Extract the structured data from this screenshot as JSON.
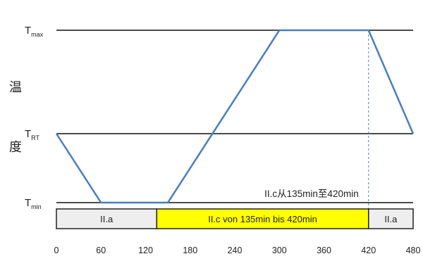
{
  "chart_data": {
    "type": "line",
    "title": "",
    "ylabel_chars": [
      "温",
      "度"
    ],
    "xlabel": "",
    "xlim": [
      0,
      480
    ],
    "x_ticks": [
      0,
      60,
      120,
      180,
      240,
      300,
      360,
      420,
      480
    ],
    "y_levels": [
      {
        "name": "Tmax",
        "base": "T",
        "sub": "max",
        "value": 1.0
      },
      {
        "name": "TRT",
        "base": "T",
        "sub": "RT",
        "value": 0.4
      },
      {
        "name": "Tmin",
        "base": "T",
        "sub": "min",
        "value": 0.0
      }
    ],
    "series": [
      {
        "color": "#4a7ebb",
        "points": [
          [
            0,
            0.4
          ],
          [
            60,
            0.0
          ],
          [
            150,
            0.0
          ],
          [
            300,
            1.0
          ],
          [
            420,
            1.0
          ],
          [
            480,
            0.4
          ]
        ]
      }
    ],
    "annotation": {
      "text": "II.c从135min至420min",
      "x": 280
    },
    "marker_line": {
      "x": 420,
      "color": "#4a7ebb",
      "style": "dashed"
    },
    "phases": [
      {
        "label": "II.a",
        "start": 0,
        "end": 135,
        "color": "#eeeeee"
      },
      {
        "label": "II.c von 135min bis 420min",
        "start": 135,
        "end": 420,
        "color": "#ffff00"
      },
      {
        "label": "II.a",
        "start": 420,
        "end": 480,
        "color": "#eeeeee"
      }
    ]
  }
}
